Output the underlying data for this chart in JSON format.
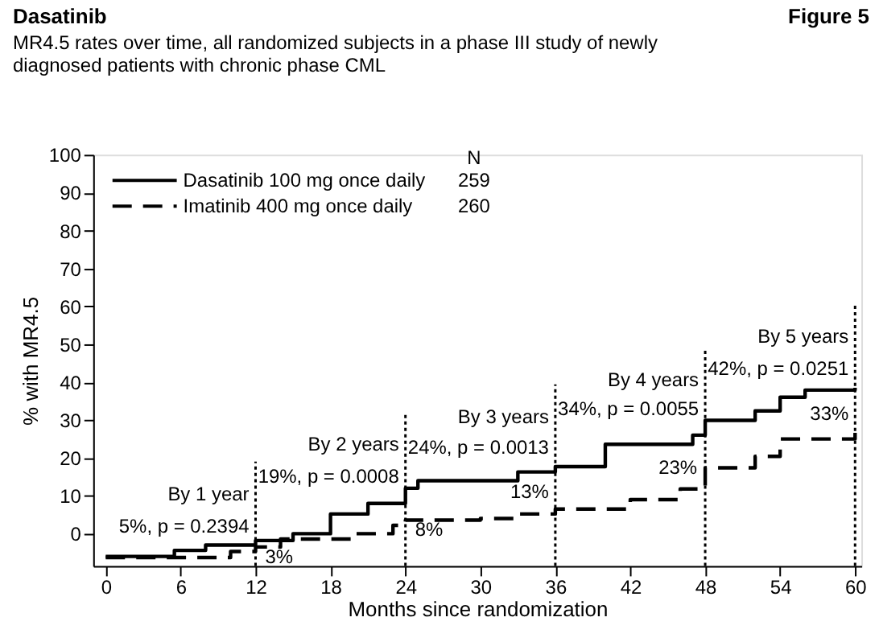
{
  "chart_data": {
    "type": "step",
    "title": "Dasatinib",
    "subtitle": "MR4.5 rates over time, all randomized subjects in a phase III study of newly diagnosed patients with chronic phase CML",
    "xlabel": "Months since randomization",
    "ylabel": "% with MR4.5",
    "legend_title": "N",
    "legend": "top left",
    "grid": false,
    "xlim": [
      -1,
      60.5
    ],
    "xticks": [
      0,
      6,
      12,
      18,
      24,
      30,
      36,
      42,
      48,
      54,
      60
    ],
    "ylim": [
      -8.5,
      100
    ],
    "yticks": [
      0,
      10,
      20,
      30,
      40,
      50,
      60,
      70,
      80,
      90,
      100
    ],
    "series": [
      {
        "name": "Dasatinib 100 mg once daily",
        "color": "#000000",
        "line_style": "solid",
        "x": [
          0,
          5.5,
          8,
          12,
          15,
          18,
          21,
          24,
          25,
          30,
          33,
          36,
          40,
          47,
          48,
          52,
          54,
          56,
          60
        ],
        "values": [
          -6,
          -4.4,
          -3,
          -1.8,
          0,
          5.2,
          8,
          12,
          14,
          14,
          16.3,
          17.7,
          23.6,
          26,
          29.9,
          32.4,
          36,
          37.9,
          38.5
        ]
      },
      {
        "name": "Imatinib 400 mg once daily",
        "color": "#000000",
        "line_style": "dashed",
        "x": [
          0,
          10,
          12,
          14,
          20,
          23,
          24,
          30,
          33,
          36,
          42,
          46,
          48,
          52,
          54,
          60
        ],
        "values": [
          -6.3,
          -4.7,
          -3.5,
          -1.4,
          0,
          2.2,
          3.6,
          4,
          5.2,
          6.5,
          9,
          11.8,
          17.4,
          20.4,
          25,
          27
        ]
      }
    ],
    "ref_lines": [
      {
        "axis": "x",
        "value": 12,
        "line_style": "dotted",
        "color": "#000000"
      },
      {
        "axis": "x",
        "value": 24,
        "line_style": "dotted",
        "color": "#000000"
      },
      {
        "axis": "x",
        "value": 36,
        "line_style": "dotted",
        "color": "#000000"
      },
      {
        "axis": "x",
        "value": 48,
        "line_style": "dotted",
        "color": "#000000"
      },
      {
        "axis": "x",
        "value": 60,
        "line_style": "dotted",
        "color": "#000000"
      }
    ],
    "annotations": [
      "Figure 5",
      "259",
      "260",
      "By 1 year",
      "5%, p = 0.2394",
      "By 2 years",
      "19%, p = 0.0008",
      "By 3 years",
      "24%, p = 0.0013",
      "By 4 years",
      "34%, p = 0.0055",
      "By 5 years",
      "42%, p = 0.0251",
      {
        "text": "3%",
        "x": 12,
        "y": -3.5
      },
      {
        "text": "8%",
        "x": 24,
        "y": 3.6
      },
      {
        "text": "13%",
        "x": 36,
        "y": 6.5
      },
      {
        "text": "23%",
        "x": 48,
        "y": 17.4
      },
      {
        "text": "33%",
        "x": 60,
        "y": 27
      }
    ]
  }
}
